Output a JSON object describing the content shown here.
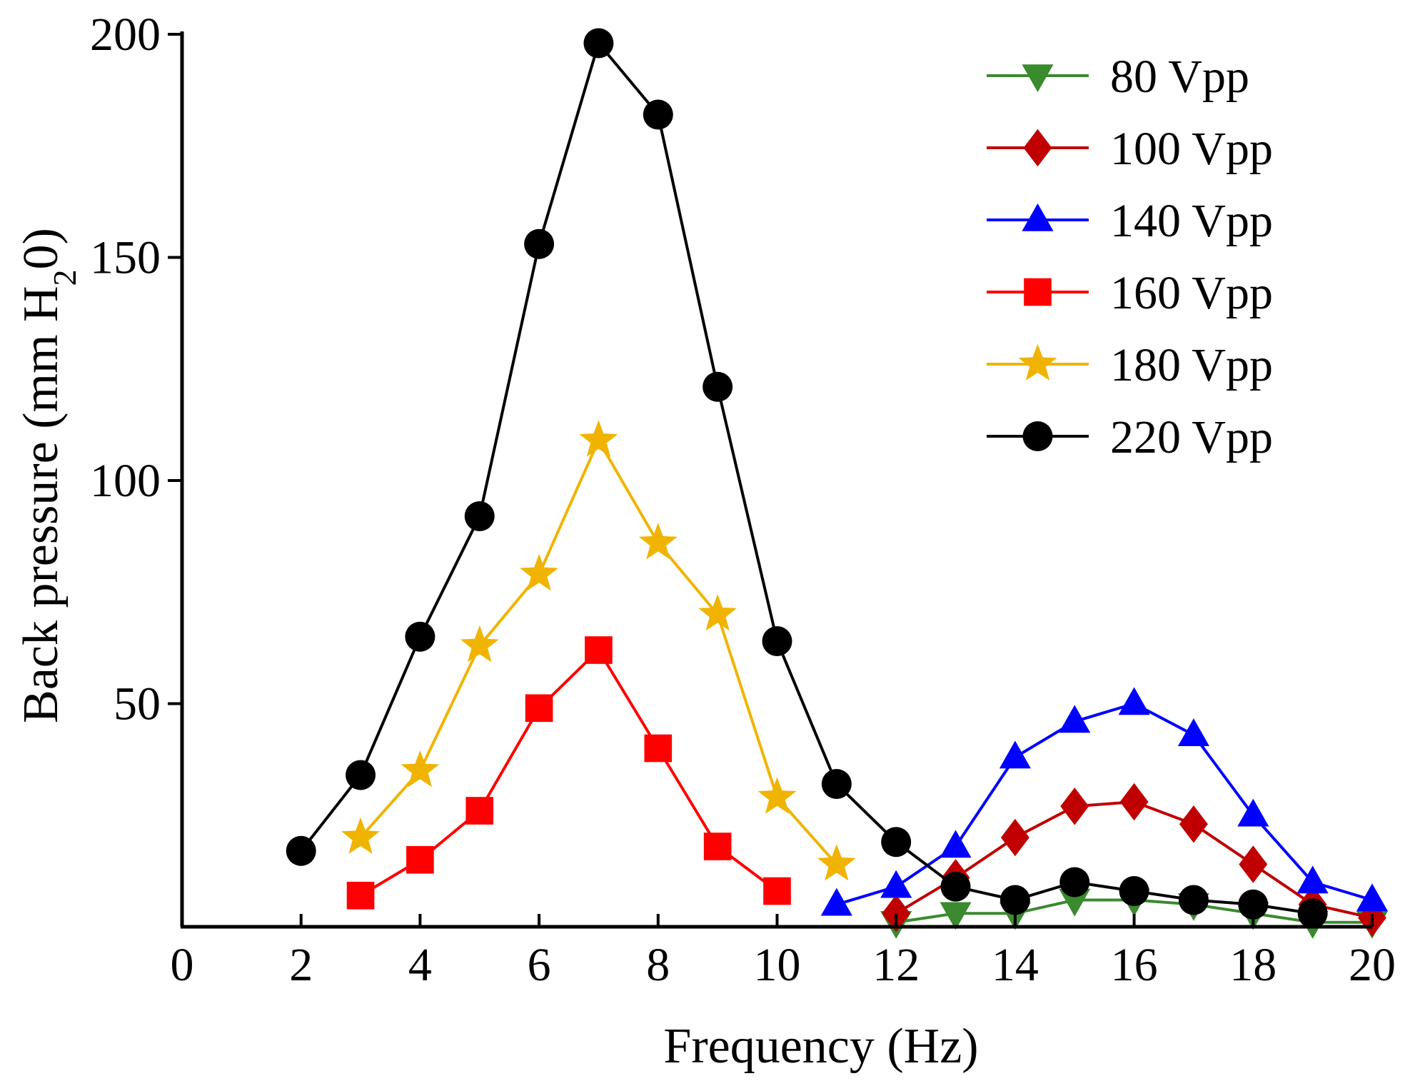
{
  "chart_data": {
    "type": "line",
    "title": "",
    "xlabel": "Frequency (Hz)",
    "ylabel": "Back pressure (mm H20)",
    "ylabel_parts": {
      "main": "Back pressure (mm H",
      "sub": "2",
      "tail": "0)"
    },
    "xlim": [
      0,
      20
    ],
    "ylim": [
      0,
      200
    ],
    "xticks": [
      "0",
      "2",
      "4",
      "6",
      "8",
      "10",
      "12",
      "14",
      "16",
      "18",
      "20"
    ],
    "yticks": [
      "50",
      "100",
      "150",
      "200"
    ],
    "grid": false,
    "legend_position": "top-right",
    "series": [
      {
        "name": "80 Vpp",
        "color": "#3a8a2e",
        "marker": "triangle-down",
        "x": [
          12,
          13,
          14,
          15,
          16,
          17,
          18,
          19,
          20
        ],
        "y": [
          1,
          3,
          3,
          6,
          6,
          5,
          3,
          1,
          1
        ]
      },
      {
        "name": "100 Vpp",
        "color": "#c00000",
        "marker": "diamond",
        "x": [
          12,
          13,
          14,
          15,
          16,
          17,
          18,
          19,
          20
        ],
        "y": [
          3,
          11,
          20,
          27,
          28,
          23,
          14,
          5,
          2
        ]
      },
      {
        "name": "140 Vpp",
        "color": "#0000ff",
        "marker": "triangle-up",
        "x": [
          11,
          12,
          13,
          14,
          15,
          16,
          17,
          18,
          19,
          20
        ],
        "y": [
          5,
          9,
          18,
          38,
          46,
          50,
          43,
          25,
          10,
          6
        ]
      },
      {
        "name": "160 Vpp",
        "color": "#ff0000",
        "marker": "square",
        "x": [
          3,
          4,
          5,
          6,
          7,
          8,
          9,
          10
        ],
        "y": [
          7,
          15,
          26,
          49,
          62,
          40,
          18,
          8
        ]
      },
      {
        "name": "180 Vpp",
        "color": "#f0b400",
        "marker": "star",
        "x": [
          3,
          4,
          5,
          6,
          7,
          8,
          9,
          10,
          11
        ],
        "y": [
          20,
          35,
          63,
          79,
          109,
          86,
          70,
          29,
          14
        ]
      },
      {
        "name": "220 Vpp",
        "color": "#000000",
        "marker": "circle",
        "x": [
          2,
          3,
          4,
          5,
          6,
          7,
          8,
          9,
          10,
          11,
          12,
          13,
          14,
          15,
          16,
          17,
          18,
          19
        ],
        "y": [
          17,
          34,
          65,
          92,
          153,
          198,
          182,
          121,
          64,
          32,
          19,
          9,
          6,
          10,
          8,
          6,
          5,
          3
        ]
      }
    ]
  }
}
